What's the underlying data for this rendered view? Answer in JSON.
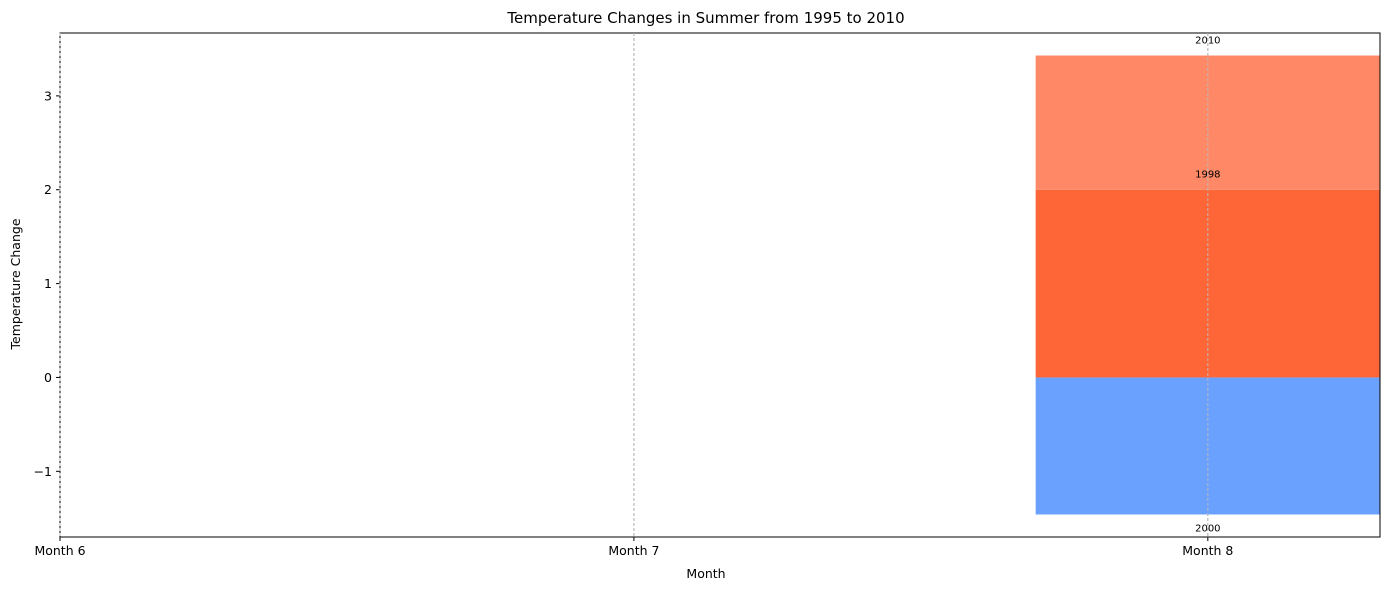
{
  "chart_data": {
    "type": "bar",
    "title": "Temperature Changes in Summer from 1995 to 2010",
    "xlabel": "Month",
    "ylabel": "Temperature Change",
    "categories": [
      "Month 6",
      "Month 7",
      "Month 8"
    ],
    "x_range": [
      6,
      8.3
    ],
    "ylim": [
      -1.7,
      3.67
    ],
    "yticks": [
      -1,
      0,
      1,
      2,
      3
    ],
    "grid": "vertical dashed at month ticks",
    "bars": [
      {
        "category": "Month 8",
        "x_center": 8.0,
        "width": 0.6,
        "segments": [
          {
            "label": "2000",
            "bottom": 0,
            "value": -1.46,
            "color": "#6aa1ff",
            "label_position": "below"
          },
          {
            "label": "1998",
            "bottom": 0,
            "value": 2.0,
            "color": "#ff6637",
            "label_position": "above"
          },
          {
            "label": "2010",
            "bottom": 2.0,
            "value": 1.43,
            "color": "#ff8866",
            "label_position": "above"
          }
        ]
      }
    ]
  }
}
